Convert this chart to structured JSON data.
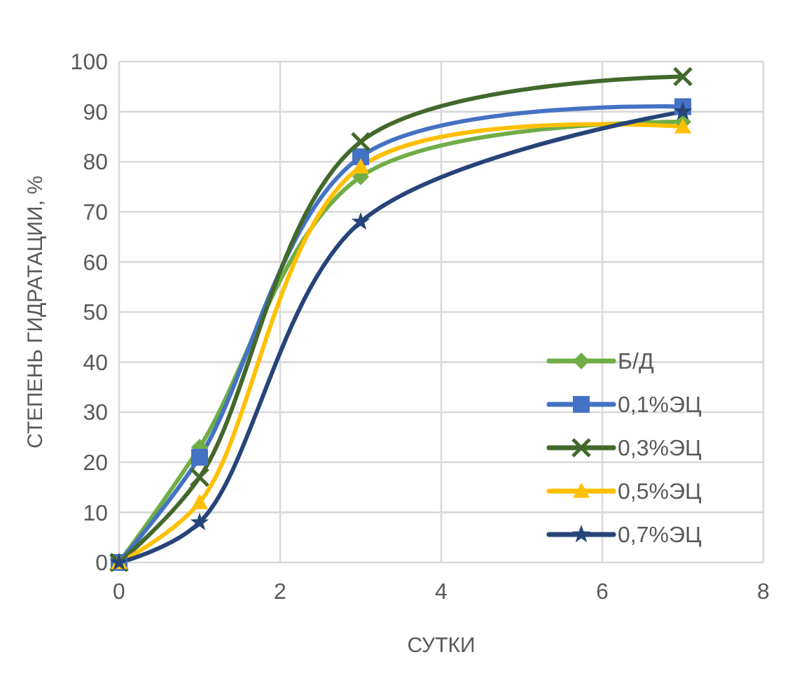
{
  "chart_data": {
    "type": "line",
    "xlabel": "СУТКИ",
    "ylabel": "СТЕПЕНЬ ГИДРАТАЦИИ, %",
    "x": [
      0,
      1,
      3,
      7
    ],
    "xlim": [
      0,
      8
    ],
    "xticks": [
      0,
      2,
      4,
      6,
      8
    ],
    "ylim": [
      0,
      100
    ],
    "yticks": [
      0,
      10,
      20,
      30,
      40,
      50,
      60,
      70,
      80,
      90,
      100
    ],
    "grid": true,
    "legend": "right",
    "line_style": "solid",
    "series": [
      {
        "name": "Б/Д",
        "color": "#70ad47",
        "marker": "diamond",
        "values": [
          0,
          23,
          77,
          88
        ]
      },
      {
        "name": "0,1%ЭЦ",
        "color": "#4472c4",
        "marker": "square",
        "values": [
          0,
          21,
          81,
          91
        ]
      },
      {
        "name": "0,3%ЭЦ",
        "color": "#43682b",
        "marker": "cross",
        "values": [
          0,
          17,
          84,
          97
        ]
      },
      {
        "name": "0,5%ЭЦ",
        "color": "#ffc000",
        "marker": "triangle",
        "values": [
          0,
          12,
          79,
          87
        ]
      },
      {
        "name": "0,7%ЭЦ",
        "color": "#264478",
        "marker": "star",
        "values": [
          0,
          8,
          68,
          90
        ]
      }
    ]
  }
}
